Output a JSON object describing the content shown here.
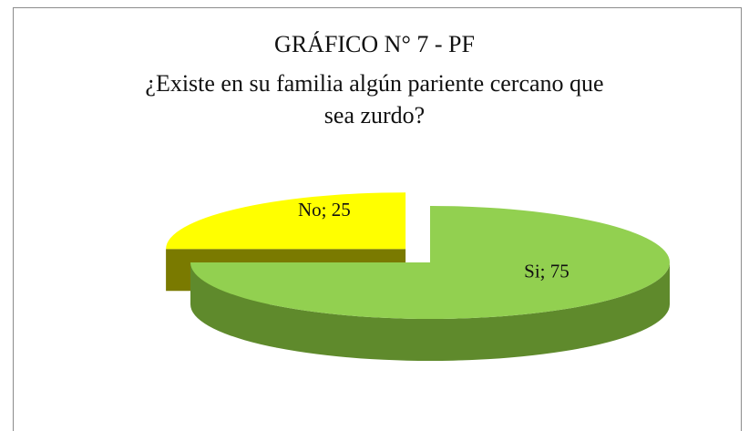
{
  "chart_data": {
    "type": "pie",
    "title": "GRÁFICO N° 7 - PF",
    "subtitle": "¿Existe en su familia algún pariente cercano que sea zurdo?",
    "categories": [
      "Si",
      "No"
    ],
    "values": [
      75,
      25
    ],
    "value_labels": [
      "Si; 75",
      "No; 25"
    ],
    "colors": [
      "#92d050",
      "#ffff00"
    ],
    "side_colors": [
      "#5f8a2c",
      "#7a7a00"
    ],
    "exploded": [
      false,
      true
    ],
    "three_d": true
  }
}
